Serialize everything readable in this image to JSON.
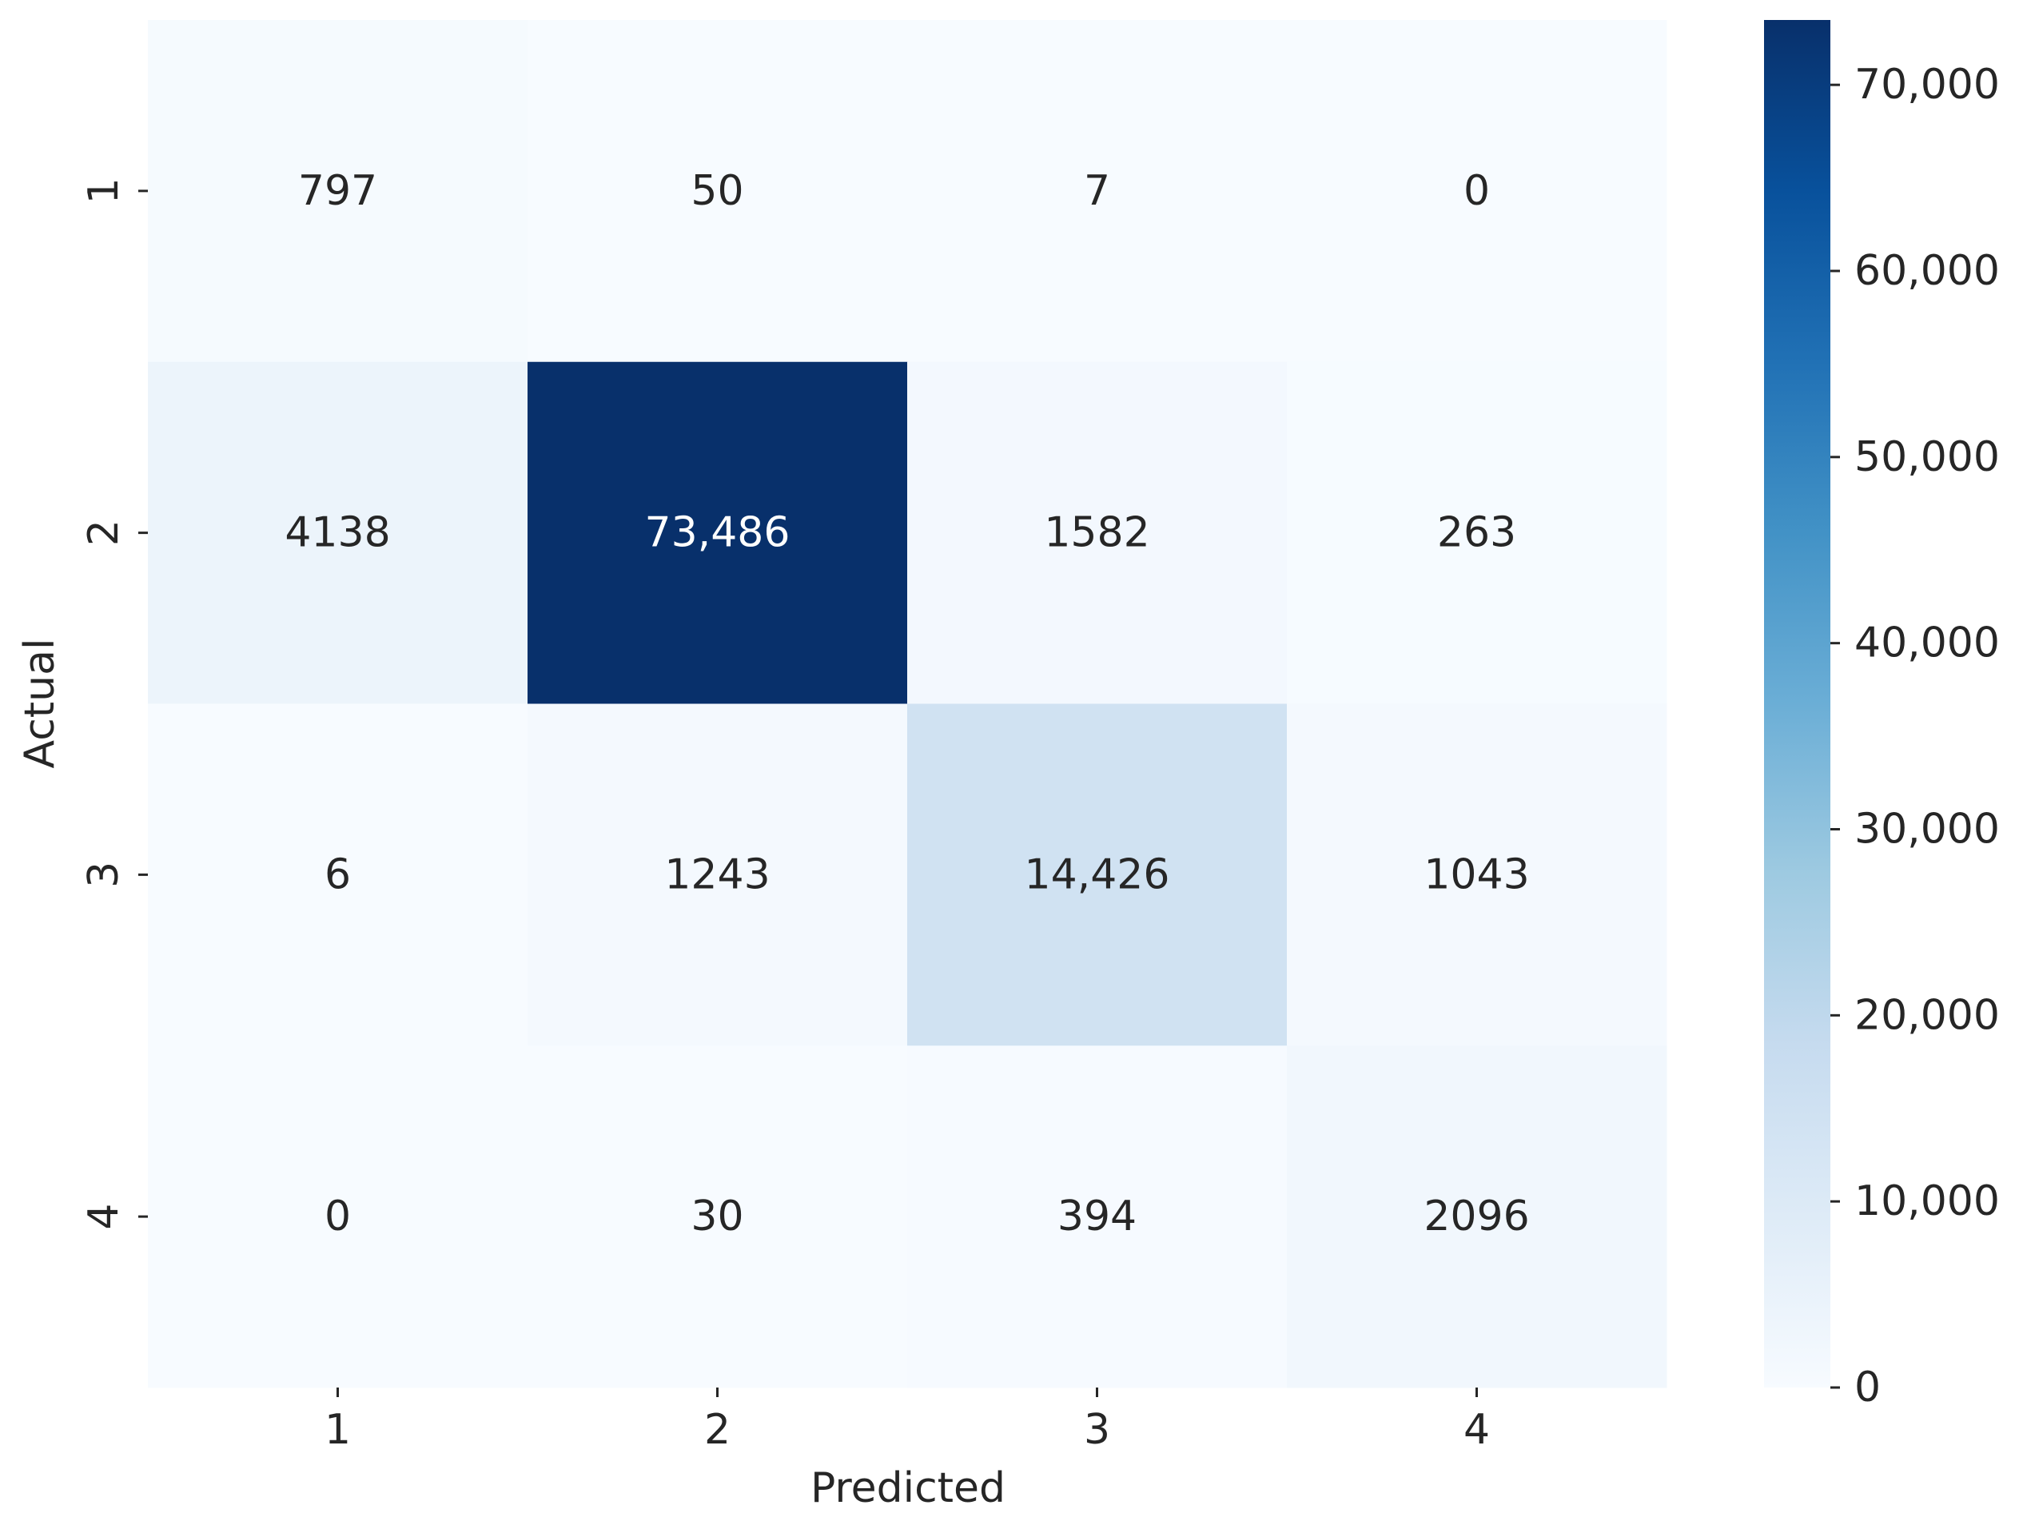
{
  "chart_data": {
    "type": "heatmap",
    "title": "",
    "xlabel": "Predicted",
    "ylabel": "Actual",
    "x_categories": [
      "1",
      "2",
      "3",
      "4"
    ],
    "y_categories": [
      "1",
      "2",
      "3",
      "4"
    ],
    "values": [
      [
        797,
        50,
        7,
        0
      ],
      [
        4138,
        73486,
        1582,
        263
      ],
      [
        6,
        1243,
        14426,
        1043
      ],
      [
        0,
        30,
        394,
        2096
      ]
    ],
    "cell_labels": [
      [
        "797",
        "50",
        "7",
        "0"
      ],
      [
        "4138",
        "73,486",
        "1582",
        "263"
      ],
      [
        "6",
        "1243",
        "14,426",
        "1043"
      ],
      [
        "0",
        "30",
        "394",
        "2096"
      ]
    ],
    "colormap": "Blues",
    "colorbar": {
      "range": [
        0,
        73486
      ],
      "ticks": [
        0,
        10000,
        20000,
        30000,
        40000,
        50000,
        60000,
        70000
      ],
      "tick_labels": [
        "0",
        "10,000",
        "20,000",
        "30,000",
        "40,000",
        "50,000",
        "60,000",
        "70,000"
      ]
    },
    "colors": {
      "annotation_dark": "#262626",
      "annotation_light": "#ffffff",
      "axis_text": "#262626"
    }
  }
}
